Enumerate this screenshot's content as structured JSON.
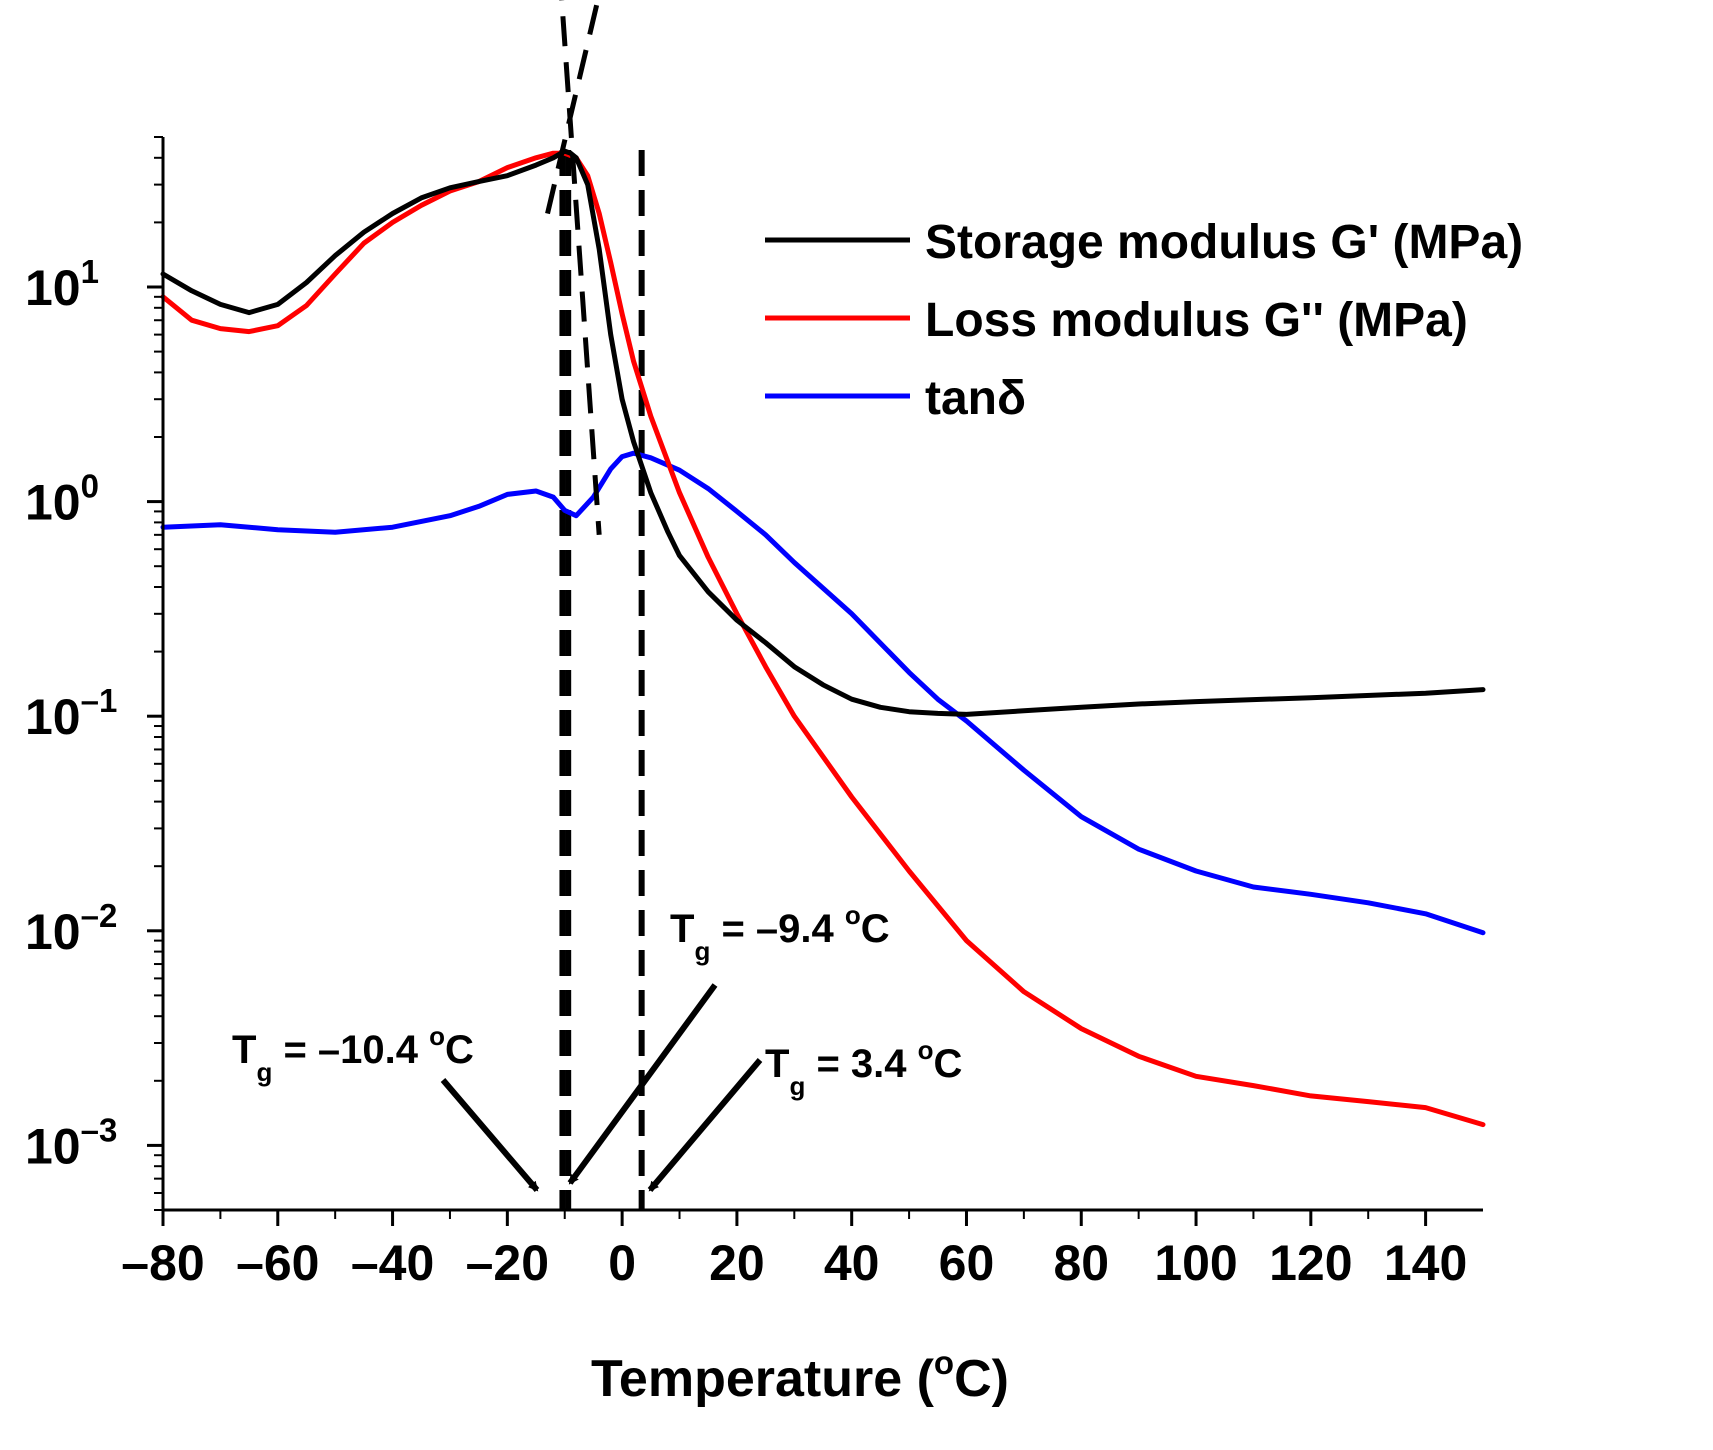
{
  "chart_data": {
    "type": "line",
    "xlabel": "Temperature (°C)",
    "xlabel_main": "Temperature (",
    "xlabel_deg": "o",
    "xlabel_unit": "C)",
    "ylabel": "",
    "yscale": "log",
    "xlim": [
      -80,
      150
    ],
    "ylim": [
      0.0005,
      50
    ],
    "x_ticks": [
      -80,
      -60,
      -40,
      -20,
      0,
      20,
      40,
      60,
      80,
      100,
      120,
      140
    ],
    "x_tick_labels": [
      "–80",
      "–60",
      "–40",
      "–20",
      "0",
      "20",
      "40",
      "60",
      "80",
      "100",
      "120",
      "140"
    ],
    "y_ticks": [
      {
        "value": 10,
        "base": "10",
        "exp": "1"
      },
      {
        "value": 1,
        "base": "10",
        "exp": "0"
      },
      {
        "value": 0.1,
        "base": "10",
        "exp": "–1"
      },
      {
        "value": 0.01,
        "base": "10",
        "exp": "–2"
      },
      {
        "value": 0.001,
        "base": "10",
        "exp": "–3"
      }
    ],
    "series": [
      {
        "name": "Storage modulus G' (MPa)",
        "color": "#000000",
        "x": [
          -80,
          -75,
          -70,
          -65,
          -60,
          -55,
          -50,
          -45,
          -40,
          -35,
          -30,
          -25,
          -20,
          -15,
          -12,
          -10,
          -9,
          -8,
          -6,
          -4,
          -2,
          0,
          2,
          5,
          8,
          10,
          15,
          20,
          25,
          30,
          35,
          40,
          45,
          50,
          55,
          60,
          70,
          80,
          90,
          100,
          120,
          140,
          150
        ],
        "y": [
          11.5,
          9.6,
          8.3,
          7.6,
          8.3,
          10.5,
          14,
          18,
          22,
          26,
          29,
          31,
          33,
          37,
          40,
          43,
          42,
          40,
          30,
          15,
          6,
          3,
          1.9,
          1.1,
          0.72,
          0.56,
          0.38,
          0.28,
          0.22,
          0.17,
          0.14,
          0.12,
          0.11,
          0.105,
          0.103,
          0.102,
          0.106,
          0.11,
          0.114,
          0.117,
          0.122,
          0.128,
          0.133
        ]
      },
      {
        "name": "Loss modulus G'' (MPa)",
        "color": "#ff0000",
        "x": [
          -80,
          -75,
          -70,
          -65,
          -60,
          -55,
          -50,
          -45,
          -40,
          -35,
          -30,
          -25,
          -20,
          -15,
          -12,
          -10,
          -8,
          -6,
          -4,
          -2,
          0,
          2,
          5,
          10,
          15,
          20,
          25,
          30,
          40,
          50,
          60,
          70,
          80,
          90,
          100,
          110,
          120,
          130,
          140,
          150
        ],
        "y": [
          9,
          7,
          6.4,
          6.2,
          6.6,
          8.2,
          11.5,
          16,
          20,
          24,
          28,
          31,
          36,
          40,
          42,
          42,
          40,
          33,
          22,
          13,
          7.5,
          4.5,
          2.5,
          1.1,
          0.55,
          0.3,
          0.17,
          0.1,
          0.042,
          0.019,
          0.009,
          0.0052,
          0.0035,
          0.0026,
          0.0021,
          0.0019,
          0.0017,
          0.0016,
          0.0015,
          0.00125
        ]
      },
      {
        "name": "tanδ",
        "color": "#0000ff",
        "x": [
          -80,
          -70,
          -60,
          -50,
          -40,
          -30,
          -25,
          -20,
          -15,
          -12,
          -10,
          -8,
          -5,
          -2,
          0,
          2,
          5,
          10,
          15,
          20,
          25,
          30,
          40,
          50,
          55,
          60,
          70,
          80,
          90,
          100,
          110,
          120,
          130,
          140,
          150
        ],
        "y": [
          0.76,
          0.78,
          0.74,
          0.72,
          0.76,
          0.86,
          0.95,
          1.08,
          1.12,
          1.05,
          0.91,
          0.86,
          1.05,
          1.42,
          1.62,
          1.68,
          1.6,
          1.4,
          1.15,
          0.9,
          0.7,
          0.52,
          0.3,
          0.16,
          0.12,
          0.095,
          0.056,
          0.034,
          0.024,
          0.019,
          0.016,
          0.0148,
          0.0135,
          0.012,
          0.0098
        ]
      }
    ],
    "legend": {
      "position": "top-right",
      "entries": [
        "Storage modulus G' (MPa)",
        "Loss modulus G'' (MPa)",
        "tanδ"
      ]
    },
    "reference_lines": {
      "vertical_dashed_x": [
        -10.4,
        -9.4,
        3.4
      ],
      "tangent_lines": [
        {
          "from": [
            -12,
            800
          ],
          "to": [
            -4,
            0.7
          ]
        },
        {
          "from": [
            -13,
            22
          ],
          "to": [
            -3,
            300
          ]
        }
      ]
    },
    "annotations": [
      {
        "label": "T",
        "sub": "g",
        "text": " = –10.4 ",
        "deg": "o",
        "unit": "C",
        "arrow_to_x": -15
      },
      {
        "label": "T",
        "sub": "g",
        "text": " = –9.4 ",
        "deg": "o",
        "unit": "C",
        "arrow_to_x": -9.4
      },
      {
        "label": "T",
        "sub": "g",
        "text": " = 3.4 ",
        "deg": "o",
        "unit": "C",
        "arrow_to_x": 3.4
      }
    ]
  }
}
